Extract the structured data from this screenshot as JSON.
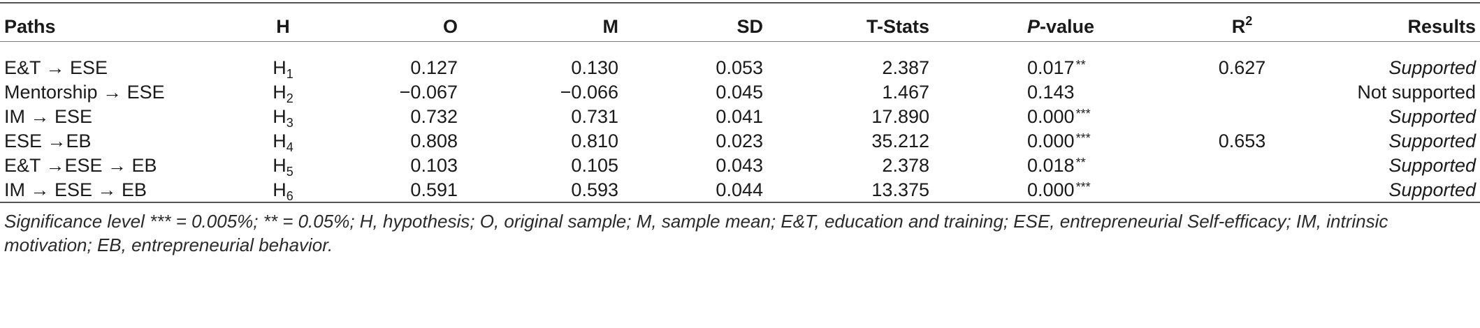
{
  "table": {
    "headers": {
      "paths": "Paths",
      "h": "H",
      "o": "O",
      "m": "M",
      "sd": "SD",
      "tstats": "T-Stats",
      "p_italic": "P",
      "p_rest": "-value",
      "r_base": "R",
      "r_sup": "2",
      "results": "Results"
    },
    "rows": [
      {
        "path": "E&T → ESE",
        "h": "H",
        "h_sub": "1",
        "o": "0.127",
        "m": "0.130",
        "sd": "0.053",
        "t": "2.387",
        "p": "0.017",
        "stars": "**",
        "r2": "0.627",
        "result": "Supported",
        "result_italic": true
      },
      {
        "path": "Mentorship → ESE",
        "h": "H",
        "h_sub": "2",
        "o": "−0.067",
        "m": "−0.066",
        "sd": "0.045",
        "t": "1.467",
        "p": "0.143",
        "stars": "",
        "r2": "",
        "result": "Not supported",
        "result_italic": false
      },
      {
        "path": "IM → ESE",
        "h": "H",
        "h_sub": "3",
        "o": "0.732",
        "m": "0.731",
        "sd": "0.041",
        "t": "17.890",
        "p": "0.000",
        "stars": "***",
        "r2": "",
        "result": "Supported",
        "result_italic": true
      },
      {
        "path": "ESE →EB",
        "h": "H",
        "h_sub": "4",
        "o": "0.808",
        "m": "0.810",
        "sd": "0.023",
        "t": "35.212",
        "p": "0.000",
        "stars": "***",
        "r2": "0.653",
        "result": "Supported",
        "result_italic": true
      },
      {
        "path": "E&T →ESE → EB",
        "h": "H",
        "h_sub": "5",
        "o": "0.103",
        "m": "0.105",
        "sd": "0.043",
        "t": "2.378",
        "p": "0.018",
        "stars": "**",
        "r2": "",
        "result": "Supported",
        "result_italic": true
      },
      {
        "path": "IM → ESE → EB",
        "h": "H",
        "h_sub": "6",
        "o": "0.591",
        "m": "0.593",
        "sd": "0.044",
        "t": "13.375",
        "p": "0.000",
        "stars": "***",
        "r2": "",
        "result": "Supported",
        "result_italic": true
      }
    ],
    "footnote": "Significance level *** = 0.005%; ** = 0.05%; H, hypothesis; O, original sample; M, sample mean; E&T, education and training; ESE, entrepreneurial Self-efficacy; IM, intrinsic motivation; EB, entrepreneurial behavior."
  }
}
